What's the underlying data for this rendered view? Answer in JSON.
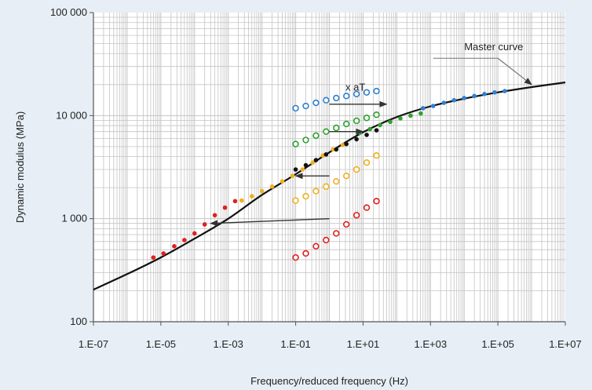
{
  "chart_data": {
    "type": "scatter",
    "title": "",
    "xlabel": "Frequency/reduced frequency (Hz)",
    "ylabel": "Dynamic modulus (MPa)",
    "xscale": "log",
    "yscale": "log",
    "xlim": [
      1e-07,
      10000000.0
    ],
    "ylim": [
      100,
      100000
    ],
    "grid": true,
    "x_ticks": [
      {
        "value": 1e-07,
        "label": "1.E-07"
      },
      {
        "value": 1e-05,
        "label": "1.E-05"
      },
      {
        "value": 0.001,
        "label": "1.E-03"
      },
      {
        "value": 0.1,
        "label": "1.E-01"
      },
      {
        "value": 10.0,
        "label": "1.E+01"
      },
      {
        "value": 1000.0,
        "label": "1.E+03"
      },
      {
        "value": 100000.0,
        "label": "1.E+05"
      },
      {
        "value": 10000000.0,
        "label": "1.E+07"
      }
    ],
    "y_ticks": [
      {
        "value": 100,
        "label": "100"
      },
      {
        "value": 1000,
        "label": "1 000"
      },
      {
        "value": 10000,
        "label": "10 000"
      },
      {
        "value": 100000,
        "label": "100 000"
      }
    ],
    "master_curve": {
      "x": [
        1e-07,
        1e-06,
        1e-05,
        0.0001,
        0.001,
        0.01,
        0.1,
        1,
        10.0,
        100.0,
        1000.0,
        10000.0,
        100000.0,
        1000000.0,
        10000000.0
      ],
      "y": [
        205,
        290,
        420,
        640,
        1000,
        1700,
        2700,
        4400,
        6900,
        9700,
        12300,
        14600,
        16800,
        18900,
        21000
      ]
    },
    "series": [
      {
        "color": "#e02020",
        "style": "open",
        "x": [
          0.1,
          0.2,
          0.4,
          0.8,
          1.6,
          3.2,
          6.4,
          12.8,
          25
        ],
        "y": [
          420,
          460,
          540,
          620,
          720,
          880,
          1080,
          1280,
          1480
        ]
      },
      {
        "color": "#f0b020",
        "style": "open",
        "x": [
          0.1,
          0.2,
          0.4,
          0.8,
          1.6,
          3.2,
          6.4,
          12.8,
          25
        ],
        "y": [
          1500,
          1650,
          1850,
          2050,
          2300,
          2600,
          3000,
          3500,
          4100
        ]
      },
      {
        "color": "#30a030",
        "style": "open",
        "x": [
          0.1,
          0.2,
          0.4,
          0.8,
          1.6,
          3.2,
          6.4,
          12.8,
          25
        ],
        "y": [
          5300,
          5800,
          6400,
          7000,
          7600,
          8300,
          8900,
          9500,
          10200
        ]
      },
      {
        "color": "#3080d0",
        "style": "open",
        "x": [
          0.1,
          0.2,
          0.4,
          0.8,
          1.6,
          3.2,
          6.4,
          12.8,
          25
        ],
        "y": [
          11800,
          12400,
          13300,
          14100,
          14800,
          15500,
          16200,
          16800,
          17300
        ]
      },
      {
        "color": "#e02020",
        "style": "filled",
        "x": [
          6e-06,
          1.2e-05,
          2.5e-05,
          5e-05,
          0.0001,
          0.0002,
          0.0004,
          0.0008,
          0.0016
        ],
        "y": [
          420,
          460,
          540,
          620,
          720,
          880,
          1080,
          1280,
          1480
        ]
      },
      {
        "color": "#f0b020",
        "style": "filled",
        "x": [
          0.0025,
          0.005,
          0.01,
          0.02,
          0.04,
          0.08,
          0.16,
          0.32,
          0.64,
          1.28,
          2.5
        ],
        "y": [
          1500,
          1650,
          1850,
          2050,
          2300,
          2600,
          3000,
          3500,
          4100,
          4700,
          5200
        ]
      },
      {
        "color": "#111111",
        "style": "filled",
        "x": [
          0.1,
          0.2,
          0.4,
          0.8,
          1.6,
          3.2,
          6.4,
          12.8,
          25
        ],
        "y": [
          3000,
          3300,
          3700,
          4200,
          4700,
          5300,
          5900,
          6500,
          7200
        ]
      },
      {
        "color": "#30a030",
        "style": "filled",
        "x": [
          8,
          16,
          32,
          64,
          128,
          256,
          512
        ],
        "y": [
          6800,
          7400,
          8100,
          8700,
          9400,
          10000,
          10500
        ]
      },
      {
        "color": "#3080d0",
        "style": "filled",
        "x": [
          600,
          1200,
          2500,
          5000,
          10000,
          20000,
          40000,
          80000,
          160000
        ],
        "y": [
          11800,
          12400,
          13300,
          14100,
          14800,
          15500,
          16200,
          16800,
          17300
        ]
      }
    ],
    "arrows": [
      {
        "from": [
          1,
          1000
        ],
        "to": [
          0.0003,
          900
        ]
      },
      {
        "from": [
          1,
          2600
        ],
        "to": [
          0.1,
          2600
        ]
      },
      {
        "from": [
          1,
          7000
        ],
        "to": [
          10,
          7000
        ]
      },
      {
        "from": [
          1,
          12900
        ],
        "to": [
          50,
          12900
        ]
      }
    ],
    "annotations": [
      {
        "text": "x aT",
        "x": 3,
        "y": 17500
      },
      {
        "text": "Master curve",
        "x": 10000,
        "y": 43000,
        "arrow_to": [
          1000000,
          20000
        ],
        "leader_from": [
          1200,
          36000
        ],
        "leader_to": [
          100000,
          36000
        ]
      }
    ],
    "colors": {
      "background": "#e7eef6",
      "plot_background": "#ffffff",
      "grid": "#c4c4c4",
      "curve": "#111111",
      "arrow": "#333333"
    }
  }
}
